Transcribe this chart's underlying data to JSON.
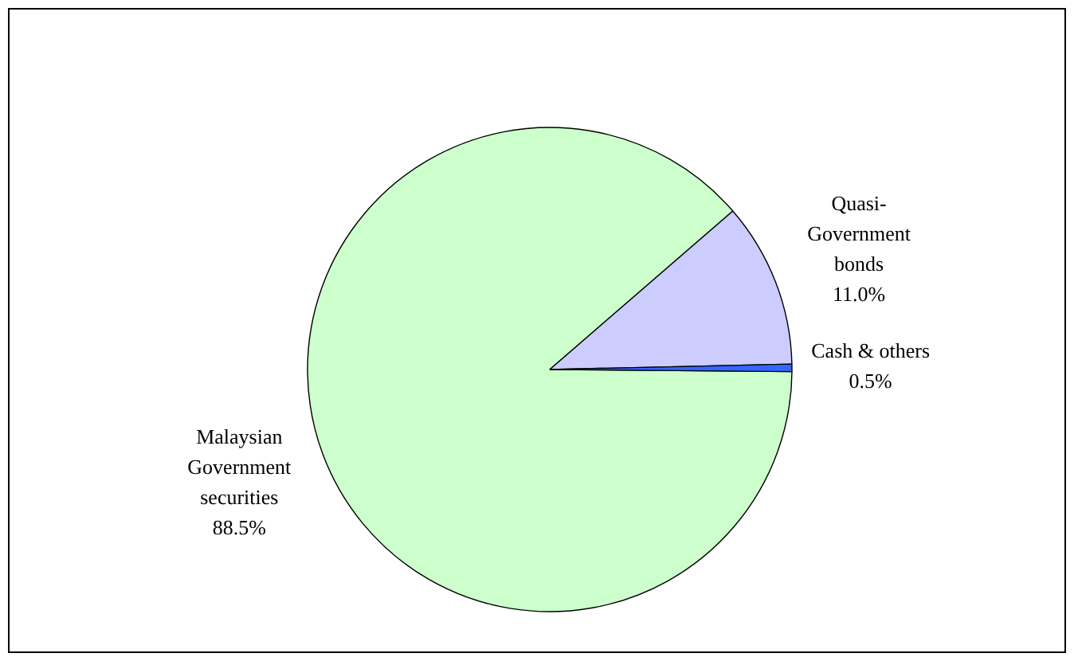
{
  "chart_data": {
    "type": "pie",
    "categories": [
      "Malaysian Government securities",
      "Quasi-Government bonds",
      "Cash & others"
    ],
    "values": [
      88.5,
      11.0,
      0.5
    ],
    "value_labels": [
      "88.5%",
      "11.0%",
      "0.5%"
    ],
    "colors": [
      "#ccffcc",
      "#ccccff",
      "#3366ff"
    ],
    "legend": false
  }
}
